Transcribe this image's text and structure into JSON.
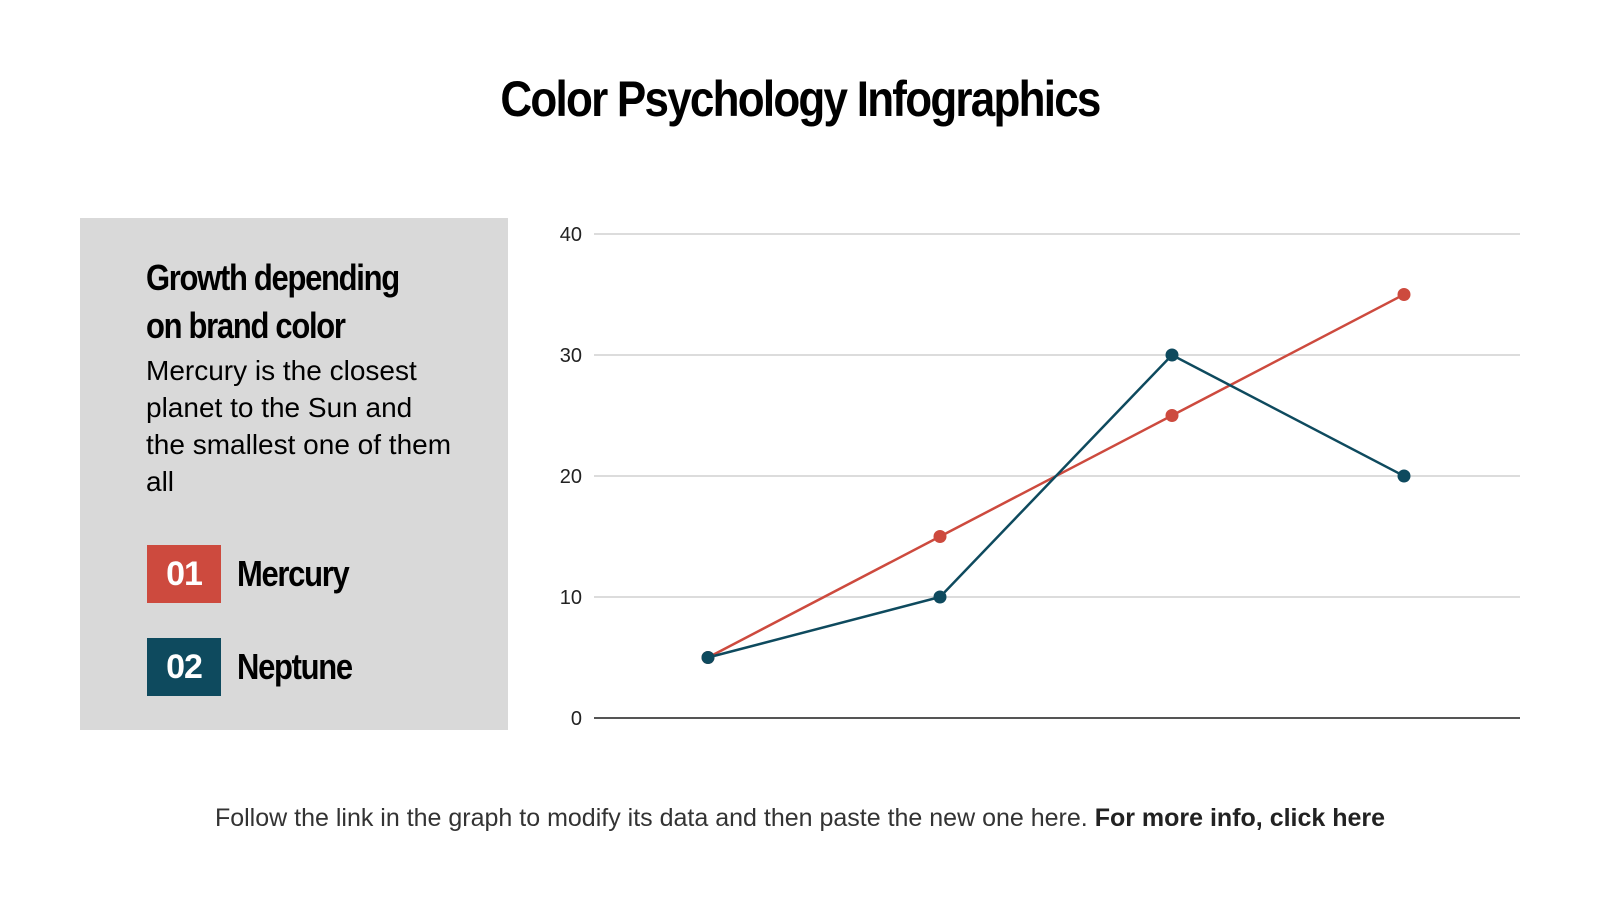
{
  "title": "Color Psychology Infographics",
  "panel": {
    "heading": "Growth depending on brand color",
    "description": "Mercury is the closest planet to the Sun and the smallest one of them all",
    "legend": [
      {
        "number": "01",
        "label": "Mercury",
        "color": "#cd4a3e"
      },
      {
        "number": "02",
        "label": "Neptune",
        "color": "#0e4a5e"
      }
    ]
  },
  "footer": {
    "text": "Follow the link in the graph to modify its data and then paste the new one here.",
    "link": "For more info, click here"
  },
  "chart_data": {
    "type": "line",
    "x": [
      1,
      2,
      3,
      4
    ],
    "ylim": [
      0,
      40
    ],
    "yticks": [
      "0",
      "10",
      "20",
      "30",
      "40"
    ],
    "grid": true,
    "series": [
      {
        "name": "Mercury",
        "color": "#cd4a3e",
        "values": [
          5,
          15,
          25,
          35
        ]
      },
      {
        "name": "Neptune",
        "color": "#0e4a5e",
        "values": [
          5,
          10,
          30,
          20
        ]
      }
    ]
  }
}
